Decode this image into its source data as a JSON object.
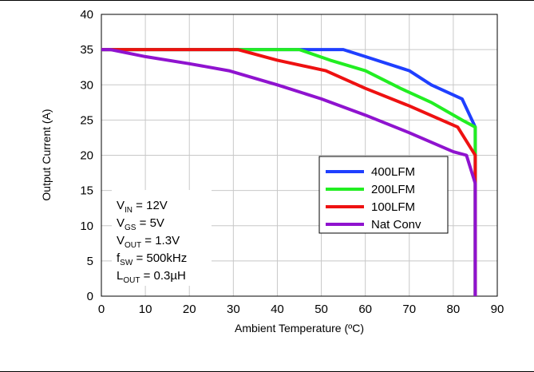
{
  "chart_data": {
    "type": "line",
    "xlabel": "Ambient Temperature (ºC)",
    "ylabel": "Output Current (A)",
    "xlim": [
      0,
      90
    ],
    "ylim": [
      0,
      40
    ],
    "xticks": [
      "0",
      "10",
      "20",
      "30",
      "40",
      "50",
      "60",
      "70",
      "80",
      "90"
    ],
    "yticks": [
      "0",
      "5",
      "10",
      "15",
      "20",
      "25",
      "30",
      "35",
      "40"
    ],
    "grid": true,
    "legend_position": "right",
    "series": [
      {
        "name": "400LFM",
        "color": "#1f3fff",
        "x": [
          0,
          55,
          60,
          70,
          75,
          82,
          85,
          85
        ],
        "y": [
          35,
          35,
          34,
          32,
          30,
          28,
          24,
          0
        ]
      },
      {
        "name": "200LFM",
        "color": "#22ee22",
        "x": [
          0,
          45,
          52,
          60,
          68,
          75,
          82,
          85,
          85
        ],
        "y": [
          35,
          35,
          33.5,
          32,
          29.5,
          27.5,
          25,
          24,
          0
        ]
      },
      {
        "name": "100LFM",
        "color": "#ee1111",
        "x": [
          0,
          31,
          40,
          51,
          60,
          70,
          81,
          85,
          85
        ],
        "y": [
          35,
          35,
          33.5,
          32,
          29.5,
          27,
          24,
          20,
          0
        ]
      },
      {
        "name": "Nat Conv",
        "color": "#8f13cf",
        "x": [
          0,
          2,
          10,
          20,
          29,
          40,
          50,
          60,
          70,
          80,
          83,
          85,
          85
        ],
        "y": [
          35,
          35,
          34,
          33,
          32,
          30,
          28,
          25.7,
          23.2,
          20.5,
          20,
          16,
          0
        ]
      }
    ],
    "annotations": [
      {
        "main": "V",
        "sub": "IN",
        "rest": " = 12V"
      },
      {
        "main": "V",
        "sub": "GS",
        "rest": " = 5V"
      },
      {
        "main": "V",
        "sub": "OUT",
        "rest": " = 1.3V"
      },
      {
        "main": "f",
        "sub": "SW",
        "rest": " = 500kHz"
      },
      {
        "main": "L",
        "sub": "OUT",
        "rest": " = 0.3µH"
      }
    ]
  }
}
